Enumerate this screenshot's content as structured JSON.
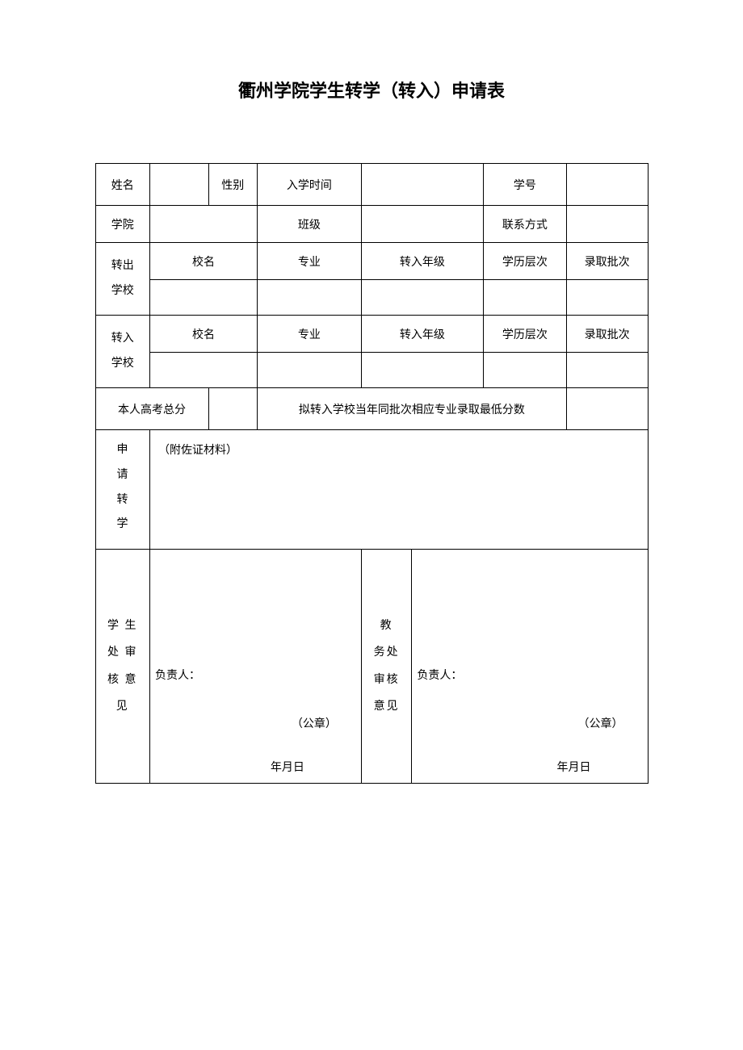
{
  "title": "衢州学院学生转学（转入）申请表",
  "labels": {
    "name": "姓名",
    "gender": "性别",
    "enroll_time": "入学时间",
    "student_id": "学号",
    "college": "学院",
    "class": "班级",
    "contact": "联系方式",
    "transfer_out": "转出学校",
    "transfer_in": "转入学校",
    "school_name": "校名",
    "major": "专业",
    "transfer_grade": "转入年级",
    "edu_level": "学历层次",
    "admit_batch": "录取批次",
    "exam_score": "本人高考总分",
    "target_min_score": "拟转入学校当年同批次相应专业录取最低分数",
    "apply_reason_label": "申请转学",
    "apply_reason_note": "（附佐证材料）",
    "student_office": "学 生处 审核 意见",
    "academic_office": "教 务处 审核 意见",
    "person_in_charge": "负责人：",
    "seal": "（公章）",
    "date": "年月日"
  },
  "values": {
    "name": "",
    "gender": "",
    "enroll_time": "",
    "student_id": "",
    "college": "",
    "class": "",
    "contact": "",
    "out_school": "",
    "out_major": "",
    "out_grade": "",
    "out_level": "",
    "out_batch": "",
    "in_school": "",
    "in_major": "",
    "in_grade": "",
    "in_level": "",
    "in_batch": "",
    "exam_score": "",
    "target_min_score": "",
    "reason_text": ""
  }
}
